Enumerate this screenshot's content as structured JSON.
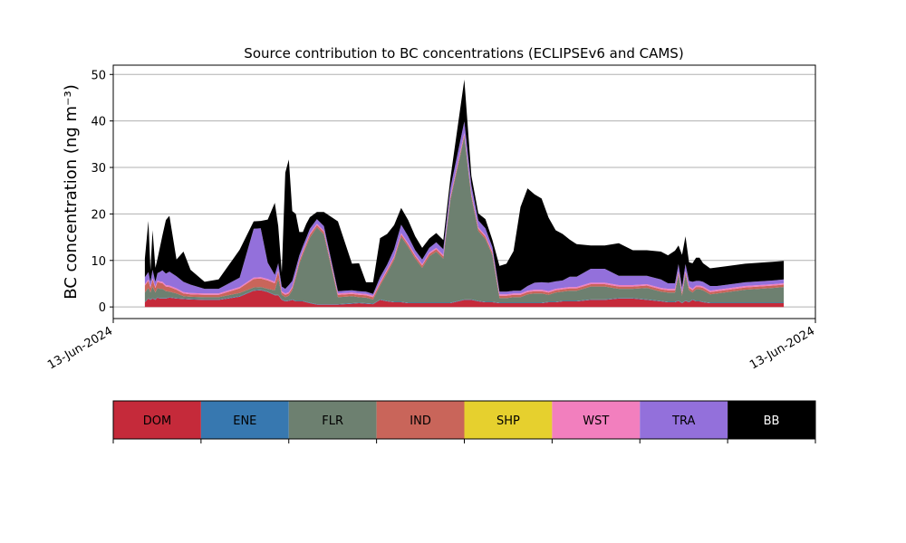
{
  "chart_data": {
    "type": "area",
    "stacked": true,
    "title": "Source contribution to BC concentrations (ECLIPSEv6 and CAMS)",
    "ylabel": "BC concentration (ng m⁻³)",
    "xlabel": "",
    "xticklabels": [
      "13-Jun-2024",
      "13-Jun-2024"
    ],
    "ylim": [
      -2.5,
      52
    ],
    "yticks": [
      0,
      10,
      20,
      30,
      40,
      50
    ],
    "grid": "y",
    "x": [
      0.045,
      0.05,
      0.053,
      0.056,
      0.06,
      0.063,
      0.066,
      0.07,
      0.075,
      0.08,
      0.09,
      0.1,
      0.11,
      0.13,
      0.15,
      0.18,
      0.2,
      0.21,
      0.22,
      0.23,
      0.235,
      0.24,
      0.245,
      0.25,
      0.255,
      0.26,
      0.265,
      0.27,
      0.275,
      0.28,
      0.29,
      0.3,
      0.32,
      0.34,
      0.35,
      0.36,
      0.37,
      0.38,
      0.39,
      0.4,
      0.41,
      0.42,
      0.43,
      0.44,
      0.45,
      0.46,
      0.47,
      0.48,
      0.5,
      0.51,
      0.52,
      0.53,
      0.54,
      0.55,
      0.56,
      0.57,
      0.58,
      0.59,
      0.6,
      0.61,
      0.62,
      0.63,
      0.64,
      0.65,
      0.66,
      0.68,
      0.7,
      0.72,
      0.74,
      0.76,
      0.78,
      0.79,
      0.8,
      0.805,
      0.81,
      0.815,
      0.82,
      0.825,
      0.83,
      0.835,
      0.84,
      0.85,
      0.86,
      0.87,
      0.9,
      0.94,
      0.955
    ],
    "series": [
      {
        "name": "DOM",
        "color": "#c52a3a",
        "values": [
          1.0,
          1.8,
          1.5,
          1.8,
          1.5,
          2.0,
          1.8,
          1.8,
          1.8,
          2.0,
          1.8,
          1.7,
          1.6,
          1.5,
          1.5,
          2.2,
          3.5,
          3.6,
          3.2,
          2.5,
          2.5,
          1.5,
          1.2,
          1.3,
          1.5,
          1.2,
          1.2,
          1.2,
          1.0,
          0.8,
          0.5,
          0.5,
          0.5,
          0.7,
          0.8,
          0.7,
          0.6,
          1.5,
          1.2,
          1.0,
          1.0,
          0.8,
          0.8,
          0.8,
          0.8,
          0.8,
          0.8,
          0.8,
          1.5,
          1.5,
          1.2,
          1.0,
          1.0,
          0.8,
          0.8,
          0.8,
          0.8,
          0.8,
          0.8,
          0.8,
          1.0,
          1.0,
          1.2,
          1.2,
          1.2,
          1.5,
          1.5,
          1.8,
          1.8,
          1.5,
          1.2,
          1.0,
          1.0,
          1.3,
          0.8,
          1.3,
          1.0,
          1.5,
          1.2,
          1.2,
          1.0,
          0.8,
          0.8,
          0.8,
          0.8,
          0.8,
          0.8
        ]
      },
      {
        "name": "ENE",
        "color": "#3778b0",
        "values": [
          0.1,
          0.1,
          0.1,
          0.1,
          0.1,
          0.1,
          0.1,
          0.1,
          0.1,
          0.1,
          0.1,
          0.1,
          0.1,
          0.1,
          0.1,
          0.1,
          0.1,
          0.1,
          0.1,
          0.1,
          0.1,
          0.1,
          0.1,
          0.1,
          0.1,
          0.1,
          0.1,
          0.1,
          0.1,
          0.1,
          0.1,
          0.1,
          0.1,
          0.1,
          0.1,
          0.1,
          0.1,
          0.1,
          0.1,
          0.1,
          0.1,
          0.1,
          0.1,
          0.1,
          0.1,
          0.1,
          0.1,
          0.1,
          0.1,
          0.1,
          0.1,
          0.1,
          0.1,
          0.1,
          0.1,
          0.1,
          0.1,
          0.1,
          0.1,
          0.1,
          0.1,
          0.1,
          0.1,
          0.1,
          0.1,
          0.1,
          0.1,
          0.1,
          0.1,
          0.1,
          0.1,
          0.1,
          0.1,
          0.1,
          0.1,
          0.1,
          0.1,
          0.1,
          0.1,
          0.1,
          0.1,
          0.1,
          0.1,
          0.1,
          0.1,
          0.1,
          0.1
        ]
      },
      {
        "name": "FLR",
        "color": "#6d8070",
        "values": [
          2.0,
          2.2,
          1.5,
          2.5,
          1.5,
          2.0,
          2.0,
          2.0,
          1.5,
          1.2,
          1.0,
          0.5,
          0.5,
          0.5,
          0.5,
          0.7,
          0.6,
          0.6,
          0.6,
          1.0,
          3.5,
          1.0,
          0.8,
          1.0,
          2.0,
          5.0,
          8.0,
          10.0,
          12.0,
          14.0,
          16.5,
          15.0,
          1.5,
          1.5,
          1.2,
          1.2,
          0.9,
          3.0,
          6.0,
          9.0,
          14.0,
          12.0,
          9.5,
          7.5,
          10.0,
          11.0,
          9.5,
          22.0,
          35.0,
          22.0,
          15.0,
          13.5,
          10.0,
          1.0,
          1.0,
          1.2,
          1.2,
          1.8,
          2.0,
          2.0,
          1.5,
          2.0,
          2.0,
          2.2,
          2.2,
          2.8,
          2.8,
          2.0,
          2.0,
          2.5,
          2.0,
          2.0,
          2.0,
          5.5,
          1.5,
          5.5,
          2.5,
          1.5,
          2.5,
          2.5,
          2.5,
          1.8,
          2.0,
          2.2,
          2.8,
          3.2,
          3.4
        ]
      },
      {
        "name": "IND",
        "color": "#c9655a",
        "values": [
          1.5,
          1.5,
          1.0,
          1.5,
          1.0,
          1.3,
          1.3,
          1.2,
          1.0,
          1.0,
          0.8,
          0.6,
          0.5,
          0.5,
          0.5,
          1.0,
          1.8,
          1.8,
          1.8,
          1.5,
          1.5,
          0.5,
          0.5,
          0.5,
          0.5,
          0.5,
          0.5,
          0.5,
          0.5,
          0.6,
          0.5,
          0.5,
          0.5,
          0.5,
          0.5,
          0.5,
          0.5,
          0.5,
          0.5,
          0.5,
          0.5,
          0.5,
          0.5,
          0.5,
          0.5,
          0.5,
          0.5,
          0.5,
          0.5,
          0.5,
          0.5,
          0.5,
          0.5,
          0.5,
          0.5,
          0.5,
          0.5,
          0.5,
          0.5,
          0.5,
          0.5,
          0.5,
          0.5,
          0.5,
          0.5,
          0.5,
          0.5,
          0.5,
          0.5,
          0.5,
          0.5,
          0.5,
          0.5,
          0.5,
          0.5,
          0.5,
          0.5,
          0.5,
          0.5,
          0.5,
          0.5,
          0.5,
          0.5,
          0.5,
          0.5,
          0.5,
          0.5
        ]
      },
      {
        "name": "SHP",
        "color": "#e6d02e",
        "values": [
          0.0,
          0.0,
          0.0,
          0.0,
          0.0,
          0.0,
          0.0,
          0.0,
          0.0,
          0.0,
          0.0,
          0.0,
          0.0,
          0.0,
          0.0,
          0.0,
          0.0,
          0.0,
          0.0,
          0.0,
          0.0,
          0.0,
          0.0,
          0.0,
          0.0,
          0.0,
          0.0,
          0.0,
          0.0,
          0.0,
          0.0,
          0.0,
          0.0,
          0.0,
          0.0,
          0.0,
          0.0,
          0.0,
          0.0,
          0.0,
          0.0,
          0.0,
          0.0,
          0.0,
          0.0,
          0.0,
          0.0,
          0.0,
          0.0,
          0.0,
          0.0,
          0.0,
          0.0,
          0.0,
          0.0,
          0.0,
          0.0,
          0.0,
          0.0,
          0.0,
          0.0,
          0.0,
          0.0,
          0.0,
          0.0,
          0.0,
          0.0,
          0.0,
          0.0,
          0.0,
          0.0,
          0.0,
          0.0,
          0.0,
          0.0,
          0.0,
          0.0,
          0.0,
          0.0,
          0.0,
          0.0,
          0.0,
          0.0,
          0.0,
          0.0,
          0.0,
          0.0
        ]
      },
      {
        "name": "WST",
        "color": "#f27fbe",
        "values": [
          0.3,
          0.3,
          0.3,
          0.3,
          0.3,
          0.3,
          0.3,
          0.3,
          0.3,
          0.3,
          0.3,
          0.3,
          0.3,
          0.3,
          0.3,
          0.3,
          0.3,
          0.3,
          0.3,
          0.3,
          0.3,
          0.3,
          0.3,
          0.3,
          0.3,
          0.3,
          0.3,
          0.3,
          0.3,
          0.3,
          0.3,
          0.3,
          0.3,
          0.3,
          0.3,
          0.3,
          0.3,
          0.3,
          0.3,
          0.3,
          0.3,
          0.3,
          0.3,
          0.3,
          0.3,
          0.3,
          0.3,
          0.3,
          0.3,
          0.3,
          0.3,
          0.3,
          0.3,
          0.3,
          0.3,
          0.3,
          0.3,
          0.3,
          0.3,
          0.3,
          0.3,
          0.3,
          0.3,
          0.3,
          0.3,
          0.3,
          0.3,
          0.3,
          0.3,
          0.3,
          0.3,
          0.3,
          0.3,
          0.3,
          0.3,
          0.3,
          0.3,
          0.3,
          0.3,
          0.3,
          0.3,
          0.3,
          0.3,
          0.3,
          0.3,
          0.3,
          0.3
        ]
      },
      {
        "name": "TRA",
        "color": "#9370db",
        "values": [
          1.5,
          1.6,
          1.0,
          1.8,
          1.0,
          1.6,
          2.0,
          2.5,
          2.5,
          3.0,
          2.6,
          2.2,
          1.8,
          1.0,
          1.0,
          2.0,
          10.5,
          10.5,
          3.5,
          1.5,
          1.5,
          1.0,
          1.0,
          1.5,
          1.2,
          1.2,
          1.0,
          1.0,
          1.0,
          1.0,
          1.0,
          1.0,
          0.5,
          0.5,
          0.5,
          0.5,
          0.4,
          1.0,
          1.0,
          1.5,
          1.8,
          1.5,
          1.0,
          1.0,
          1.0,
          1.2,
          1.2,
          1.8,
          2.5,
          1.8,
          1.5,
          1.5,
          1.0,
          0.6,
          0.6,
          0.6,
          0.6,
          1.0,
          1.5,
          1.6,
          1.8,
          1.6,
          1.6,
          2.2,
          2.2,
          3.0,
          3.0,
          2.0,
          2.0,
          1.8,
          1.8,
          1.2,
          1.2,
          1.5,
          1.0,
          1.5,
          1.2,
          1.5,
          1.0,
          1.0,
          1.0,
          1.0,
          0.8,
          0.8,
          0.8,
          0.8,
          0.8
        ]
      },
      {
        "name": "BB",
        "color": "#000000",
        "values": [
          4.0,
          11.0,
          2.5,
          8.5,
          3.0,
          3.0,
          5.0,
          7.5,
          11.5,
          12.0,
          3.6,
          6.5,
          3.2,
          1.5,
          2.0,
          6.0,
          1.6,
          1.6,
          9.3,
          15.5,
          8.0,
          3.0,
          25.0,
          27.0,
          15.0,
          11.7,
          5.0,
          3.0,
          3.0,
          2.5,
          1.5,
          3.0,
          15.0,
          5.7,
          6.0,
          2.0,
          2.5,
          8.4,
          6.6,
          5.2,
          3.6,
          3.5,
          3.0,
          2.5,
          2.0,
          2.0,
          2.0,
          2.0,
          9.0,
          2.0,
          1.5,
          2.0,
          1.5,
          5.5,
          6.0,
          8.5,
          18.0,
          21.0,
          19.0,
          18.0,
          14.0,
          11.0,
          10.0,
          8.0,
          7.0,
          5.0,
          5.0,
          7.0,
          5.5,
          5.5,
          6.0,
          6.0,
          7.0,
          4.0,
          7.0,
          6.0,
          4.0,
          4.0,
          5.0,
          5.0,
          4.0,
          3.8,
          4.0,
          4.0,
          4.0,
          4.0,
          4.0
        ]
      }
    ],
    "legend": {
      "placement": "below",
      "items": [
        {
          "label": "DOM",
          "color": "#c52a3a",
          "text_color": "#000000"
        },
        {
          "label": "ENE",
          "color": "#3778b0",
          "text_color": "#000000"
        },
        {
          "label": "FLR",
          "color": "#6d8070",
          "text_color": "#000000"
        },
        {
          "label": "IND",
          "color": "#c9655a",
          "text_color": "#000000"
        },
        {
          "label": "SHP",
          "color": "#e6d02e",
          "text_color": "#000000"
        },
        {
          "label": "WST",
          "color": "#f27fbe",
          "text_color": "#000000"
        },
        {
          "label": "TRA",
          "color": "#9370db",
          "text_color": "#000000"
        },
        {
          "label": "BB",
          "color": "#000000",
          "text_color": "#ffffff"
        }
      ]
    }
  }
}
